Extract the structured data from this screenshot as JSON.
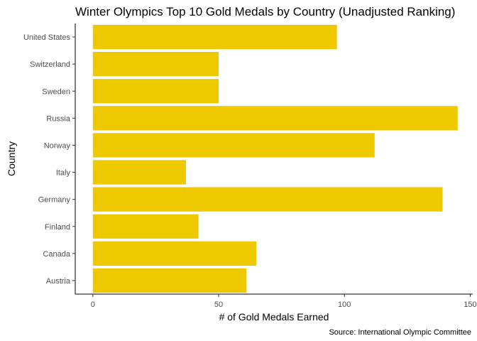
{
  "chart_data": {
    "type": "bar",
    "orientation": "horizontal",
    "title": "Winter Olympics Top 10 Gold Medals by Country (Unadjusted Ranking)",
    "caption": "Source: International Olympic Committee",
    "xlabel": "# of Gold Medals Earned",
    "ylabel": "Country",
    "categories": [
      "Austria",
      "Canada",
      "Finland",
      "Germany",
      "Italy",
      "Norway",
      "Russia",
      "Sweden",
      "Switzerland",
      "United States"
    ],
    "values": [
      61,
      65,
      42,
      139,
      37,
      112,
      145,
      50,
      50,
      97
    ],
    "xticks": [
      0,
      50,
      100,
      150
    ],
    "xlim": [
      -7,
      151
    ],
    "bar_color": "#EEC900",
    "grid": false
  }
}
